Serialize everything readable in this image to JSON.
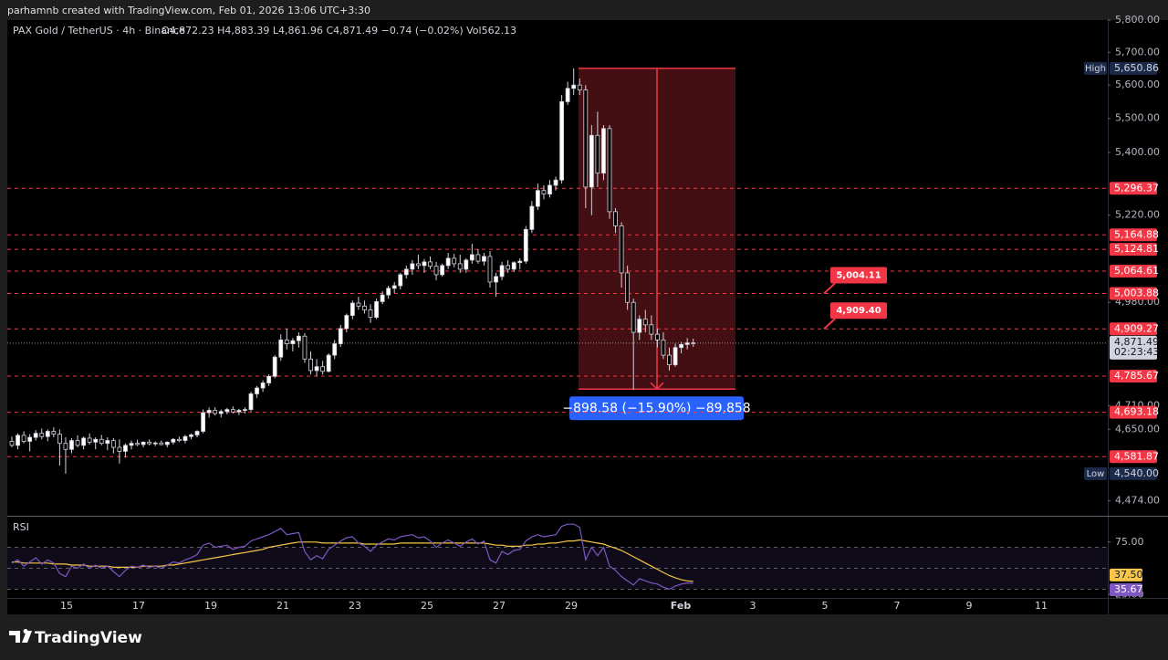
{
  "header": {
    "credit": "parhamnb created with TradingView.com, Feb 01, 2026 13:06 UTC+3:30",
    "logo": "TradingView"
  },
  "chart_data": {
    "type": "candlestick",
    "title": "PAX Gold / TetherUS · 4h · Binance",
    "legend_ohlc": "O4,872.23  H4,883.39  L4,861.96  C4,871.49  −0.74 (−0.02%)  Vol562.13",
    "log_scale": true,
    "ylim": [
      4438,
      5800
    ],
    "yticks": [
      {
        "value": 5800,
        "label": "5,800.00"
      },
      {
        "value": 5700,
        "label": "5,700.00"
      },
      {
        "value": 5600,
        "label": "5,600.00"
      },
      {
        "value": 5500,
        "label": "5,500.00"
      },
      {
        "value": 5400,
        "label": "5,400.00"
      },
      {
        "value": 5220,
        "label": "5,220.00"
      },
      {
        "value": 4980,
        "label": "4,980.00"
      },
      {
        "value": 4710,
        "label": "4,710.00"
      },
      {
        "value": 4650,
        "label": "4,650.00"
      },
      {
        "value": 4474,
        "label": "4,474.00"
      }
    ],
    "xtick_labels": [
      "15",
      "17",
      "19",
      "21",
      "23",
      "25",
      "27",
      "29",
      "Feb",
      "3",
      "5",
      "7",
      "9",
      "11"
    ],
    "up_color": "#ffffff",
    "down_color": "#000000",
    "wick_color": "#d1d4dc",
    "candles": [
      [
        4620,
        4632,
        4605,
        4610
      ],
      [
        4610,
        4640,
        4600,
        4635
      ],
      [
        4635,
        4645,
        4615,
        4620
      ],
      [
        4620,
        4638,
        4595,
        4630
      ],
      [
        4630,
        4648,
        4622,
        4640
      ],
      [
        4640,
        4652,
        4625,
        4632
      ],
      [
        4632,
        4650,
        4620,
        4645
      ],
      [
        4645,
        4655,
        4630,
        4638
      ],
      [
        4638,
        4650,
        4560,
        4615
      ],
      [
        4615,
        4630,
        4540,
        4600
      ],
      [
        4600,
        4628,
        4590,
        4622
      ],
      [
        4622,
        4635,
        4605,
        4610
      ],
      [
        4610,
        4632,
        4600,
        4628
      ],
      [
        4628,
        4640,
        4612,
        4618
      ],
      [
        4618,
        4630,
        4600,
        4625
      ],
      [
        4625,
        4636,
        4610,
        4615
      ],
      [
        4615,
        4630,
        4598,
        4622
      ],
      [
        4622,
        4628,
        4590,
        4605
      ],
      [
        4605,
        4625,
        4565,
        4595
      ],
      [
        4595,
        4615,
        4580,
        4610
      ],
      [
        4610,
        4622,
        4600,
        4615
      ],
      [
        4615,
        4624,
        4608,
        4612
      ],
      [
        4612,
        4620,
        4605,
        4618
      ],
      [
        4618,
        4625,
        4610,
        4614
      ],
      [
        4614,
        4620,
        4608,
        4616
      ],
      [
        4616,
        4622,
        4610,
        4612
      ],
      [
        4612,
        4620,
        4605,
        4618
      ],
      [
        4618,
        4628,
        4612,
        4625
      ],
      [
        4625,
        4632,
        4618,
        4622
      ],
      [
        4622,
        4636,
        4615,
        4632
      ],
      [
        4632,
        4640,
        4625,
        4636
      ],
      [
        4636,
        4648,
        4630,
        4645
      ],
      [
        4645,
        4700,
        4640,
        4692
      ],
      [
        4692,
        4705,
        4680,
        4698
      ],
      [
        4698,
        4706,
        4685,
        4690
      ],
      [
        4690,
        4700,
        4680,
        4695
      ],
      [
        4695,
        4704,
        4688,
        4700
      ],
      [
        4700,
        4708,
        4690,
        4694
      ],
      [
        4694,
        4702,
        4686,
        4698
      ],
      [
        4698,
        4706,
        4690,
        4700
      ],
      [
        4700,
        4745,
        4695,
        4740
      ],
      [
        4740,
        4760,
        4730,
        4755
      ],
      [
        4755,
        4775,
        4745,
        4768
      ],
      [
        4768,
        4790,
        4760,
        4785
      ],
      [
        4785,
        4840,
        4780,
        4835
      ],
      [
        4835,
        4895,
        4825,
        4880
      ],
      [
        4880,
        4910,
        4855,
        4870
      ],
      [
        4870,
        4885,
        4850,
        4878
      ],
      [
        4878,
        4900,
        4860,
        4890
      ],
      [
        4890,
        4898,
        4820,
        4830
      ],
      [
        4830,
        4850,
        4790,
        4800
      ],
      [
        4800,
        4830,
        4785,
        4810
      ],
      [
        4810,
        4825,
        4790,
        4798
      ],
      [
        4798,
        4845,
        4795,
        4840
      ],
      [
        4840,
        4880,
        4830,
        4870
      ],
      [
        4870,
        4920,
        4862,
        4910
      ],
      [
        4910,
        4950,
        4900,
        4945
      ],
      [
        4945,
        4985,
        4935,
        4978
      ],
      [
        4978,
        4995,
        4960,
        4970
      ],
      [
        4970,
        4985,
        4950,
        4960
      ],
      [
        4960,
        4975,
        4925,
        4940
      ],
      [
        4940,
        4990,
        4935,
        4982
      ],
      [
        4982,
        5010,
        4975,
        5000
      ],
      [
        5000,
        5025,
        4990,
        5018
      ],
      [
        5018,
        5035,
        5005,
        5025
      ],
      [
        5025,
        5060,
        5015,
        5055
      ],
      [
        5055,
        5080,
        5045,
        5070
      ],
      [
        5070,
        5095,
        5055,
        5085
      ],
      [
        5085,
        5110,
        5070,
        5080
      ],
      [
        5080,
        5098,
        5060,
        5090
      ],
      [
        5090,
        5105,
        5070,
        5078
      ],
      [
        5078,
        5090,
        5040,
        5055
      ],
      [
        5055,
        5085,
        5050,
        5080
      ],
      [
        5080,
        5115,
        5070,
        5100
      ],
      [
        5100,
        5112,
        5075,
        5085
      ],
      [
        5085,
        5110,
        5060,
        5070
      ],
      [
        5070,
        5100,
        5060,
        5095
      ],
      [
        5095,
        5140,
        5085,
        5110
      ],
      [
        5110,
        5125,
        5085,
        5092
      ],
      [
        5092,
        5115,
        5080,
        5105
      ],
      [
        5105,
        5120,
        5020,
        5035
      ],
      [
        5035,
        5060,
        4995,
        5050
      ],
      [
        5050,
        5090,
        5040,
        5080
      ],
      [
        5080,
        5095,
        5060,
        5070
      ],
      [
        5070,
        5092,
        5062,
        5088
      ],
      [
        5088,
        5100,
        5070,
        5092
      ],
      [
        5092,
        5190,
        5085,
        5180
      ],
      [
        5180,
        5260,
        5170,
        5245
      ],
      [
        5245,
        5310,
        5235,
        5290
      ],
      [
        5290,
        5305,
        5265,
        5280
      ],
      [
        5280,
        5320,
        5270,
        5305
      ],
      [
        5305,
        5330,
        5290,
        5320
      ],
      [
        5320,
        5570,
        5310,
        5550
      ],
      [
        5550,
        5610,
        5540,
        5590
      ],
      [
        5590,
        5650.86,
        5570,
        5600
      ],
      [
        5600,
        5620,
        5570,
        5585
      ],
      [
        5585,
        5600,
        5240,
        5300
      ],
      [
        5300,
        5480,
        5220,
        5450
      ],
      [
        5450,
        5520,
        5300,
        5340
      ],
      [
        5340,
        5480,
        5320,
        5470
      ],
      [
        5470,
        5480,
        5210,
        5230
      ],
      [
        5230,
        5240,
        5170,
        5190
      ],
      [
        5190,
        5200,
        5020,
        5060
      ],
      [
        5060,
        5080,
        4960,
        4980
      ],
      [
        4980,
        4990,
        4750,
        4900
      ],
      [
        4900,
        4945,
        4880,
        4935
      ],
      [
        4935,
        4960,
        4900,
        4920
      ],
      [
        4920,
        4945,
        4880,
        4895
      ],
      [
        4895,
        4910,
        4860,
        4880
      ],
      [
        4880,
        4900,
        4830,
        4840
      ],
      [
        4840,
        4860,
        4800,
        4815
      ],
      [
        4815,
        4870,
        4810,
        4860
      ],
      [
        4860,
        4875,
        4845,
        4868
      ],
      [
        4868,
        4885,
        4855,
        4872.23
      ],
      [
        4872.23,
        4883.39,
        4861.96,
        4871.49
      ]
    ],
    "level_color": "#f23645",
    "levels": [
      {
        "value": 5296.37,
        "label": "5,296.37"
      },
      {
        "value": 5164.88,
        "label": "5,164.88"
      },
      {
        "value": 5124.81,
        "label": "5,124.81"
      },
      {
        "value": 5064.61,
        "label": "5,064.61"
      },
      {
        "value": 5003.88,
        "label": "5,003.88"
      },
      {
        "value": 4909.27,
        "label": "4,909.27"
      },
      {
        "value": 4785.67,
        "label": "4,785.67"
      },
      {
        "value": 4693.18,
        "label": "4,693.18"
      },
      {
        "value": 4581.87,
        "label": "4,581.87"
      }
    ],
    "high": {
      "tag": "High",
      "value": 5650.86,
      "label": "5,650.86"
    },
    "low": {
      "tag": "Low",
      "value": 4540,
      "label": "4,540.00"
    },
    "last": {
      "value": 4871.49,
      "label": "4,871.49",
      "countdown": "02:23:43"
    },
    "callouts": [
      {
        "value": 5004.11,
        "label": "5,004.11"
      },
      {
        "value": 4909.4,
        "label": "4,909.40"
      }
    ],
    "measure": {
      "from": 5650.86,
      "to": 4752.28,
      "label": "−898.58 (−15.90%) −89,858"
    },
    "rsi": {
      "title": "RSI",
      "ylim": [
        20,
        100
      ],
      "yticks": [
        {
          "value": 75,
          "label": "75.00"
        },
        {
          "value": 25,
          "label": "25.00"
        }
      ],
      "bands": [
        70,
        50,
        30
      ],
      "series": [
        {
          "color": "#7e57c2",
          "last_label": "35.67",
          "values": [
            55,
            58,
            52,
            56,
            60,
            54,
            58,
            55,
            45,
            42,
            52,
            50,
            54,
            50,
            53,
            50,
            52,
            47,
            42,
            48,
            52,
            51,
            53,
            51,
            52,
            50,
            53,
            56,
            55,
            58,
            60,
            63,
            72,
            74,
            70,
            71,
            72,
            68,
            70,
            71,
            76,
            78,
            80,
            82,
            85,
            88,
            82,
            83,
            84,
            66,
            58,
            62,
            59,
            68,
            72,
            76,
            79,
            80,
            74,
            71,
            66,
            72,
            75,
            78,
            77,
            80,
            81,
            82,
            79,
            80,
            76,
            70,
            74,
            77,
            74,
            71,
            75,
            78,
            73,
            76,
            58,
            55,
            66,
            63,
            67,
            68,
            76,
            80,
            82,
            80,
            81,
            82,
            90,
            92,
            92,
            89,
            58,
            70,
            62,
            70,
            52,
            48,
            42,
            38,
            34,
            40,
            38,
            36,
            35,
            32,
            30,
            33,
            35,
            36,
            35.67
          ]
        },
        {
          "color": "#f7c548",
          "last_label": "37.50",
          "values": [
            56,
            56,
            55,
            55,
            55,
            55,
            55,
            54,
            54,
            54,
            53,
            53,
            53,
            52,
            52,
            52,
            52,
            51,
            51,
            51,
            51,
            51,
            52,
            52,
            52,
            52,
            53,
            53,
            54,
            55,
            56,
            57,
            58,
            59,
            60,
            61,
            62,
            63,
            64,
            65,
            66,
            67,
            68,
            70,
            71,
            72,
            73,
            74,
            75,
            75,
            75,
            75,
            74,
            74,
            74,
            74,
            74,
            74,
            74,
            73,
            73,
            73,
            73,
            73,
            73,
            74,
            74,
            74,
            74,
            74,
            74,
            74,
            74,
            74,
            74,
            74,
            74,
            74,
            74,
            74,
            73,
            72,
            72,
            71,
            71,
            71,
            72,
            72,
            73,
            73,
            74,
            74,
            75,
            76,
            76,
            77,
            76,
            75,
            74,
            73,
            71,
            69,
            67,
            64,
            61,
            58,
            55,
            52,
            49,
            46,
            43,
            41,
            39,
            38,
            37.5
          ]
        }
      ]
    }
  }
}
